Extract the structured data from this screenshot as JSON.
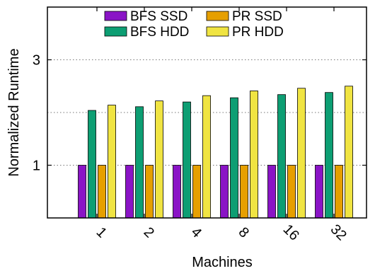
{
  "chart_data": {
    "type": "bar",
    "categories": [
      "1",
      "2",
      "4",
      "8",
      "16",
      "32"
    ],
    "series": [
      {
        "name": "BFS SSD",
        "color": "#8a14c6",
        "values": [
          1,
          1,
          1,
          1,
          1,
          1
        ]
      },
      {
        "name": "BFS HDD",
        "color": "#0d9e73",
        "values": [
          2.04,
          2.11,
          2.2,
          2.28,
          2.34,
          2.38
        ]
      },
      {
        "name": "PR SSD",
        "color": "#e69f00",
        "values": [
          1,
          1,
          1,
          1,
          1,
          1
        ]
      },
      {
        "name": "PR HDD",
        "color": "#f0e442",
        "values": [
          2.14,
          2.22,
          2.32,
          2.41,
          2.46,
          2.5
        ]
      }
    ],
    "legend_order": [
      0,
      2,
      1,
      3
    ],
    "xlabel": "Machines",
    "ylabel": "Normalized Runtime",
    "ylim": [
      0,
      4
    ],
    "yticks": [
      1,
      3
    ],
    "grid": "horizontal dotted",
    "legend_position": "top"
  }
}
